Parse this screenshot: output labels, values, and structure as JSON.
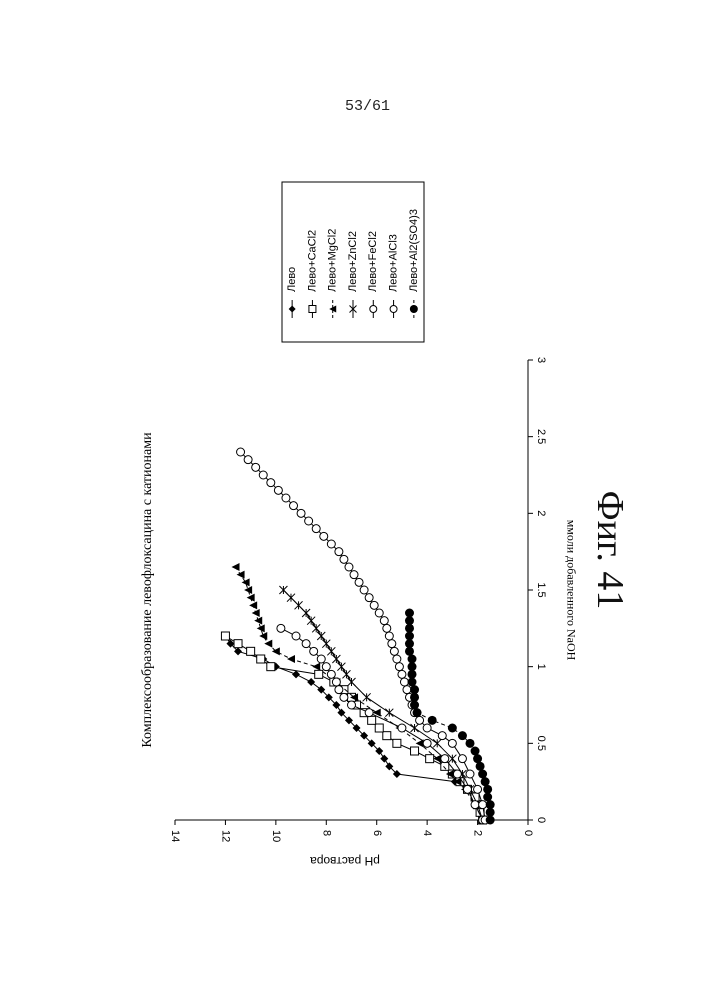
{
  "page": {
    "number": "53/61",
    "figure_label": "Фиг. 41"
  },
  "chart_data": {
    "type": "scatter",
    "title": "Комплексообразование левофлоксацина с катионами",
    "xlabel": "ммоли добавленного NaOH",
    "ylabel": "pH раствора",
    "xlim": [
      0,
      3
    ],
    "ylim": [
      0,
      14
    ],
    "xticks": [
      "0",
      "0.5",
      "1",
      "1.5",
      "2",
      "2.5",
      "3"
    ],
    "yticks": [
      "0",
      "2",
      "4",
      "6",
      "8",
      "10",
      "12",
      "14"
    ],
    "legend_position": "right",
    "series": [
      {
        "name": "Лево",
        "marker": "diamond",
        "dash": "solid",
        "x": [
          0,
          0.05,
          0.1,
          0.15,
          0.2,
          0.25,
          0.3,
          0.35,
          0.4,
          0.45,
          0.5,
          0.55,
          0.6,
          0.65,
          0.7,
          0.75,
          0.8,
          0.85,
          0.9,
          0.95,
          1.0,
          1.05,
          1.1,
          1.15,
          1.2
        ],
        "y": [
          1.8,
          1.9,
          2.0,
          2.1,
          2.4,
          2.9,
          5.2,
          5.5,
          5.7,
          5.9,
          6.2,
          6.5,
          6.8,
          7.1,
          7.4,
          7.6,
          7.9,
          8.2,
          8.6,
          9.2,
          10.0,
          10.5,
          11.5,
          11.8,
          12.0
        ]
      },
      {
        "name": "Лево+CaCl2",
        "marker": "square",
        "dash": "solid",
        "x": [
          0,
          0.05,
          0.1,
          0.15,
          0.2,
          0.25,
          0.3,
          0.35,
          0.4,
          0.45,
          0.5,
          0.55,
          0.6,
          0.65,
          0.7,
          0.75,
          0.8,
          0.85,
          0.9,
          0.95,
          1.0,
          1.05,
          1.1,
          1.15,
          1.2
        ],
        "y": [
          1.8,
          1.9,
          2.0,
          2.1,
          2.4,
          2.7,
          3.0,
          3.3,
          3.9,
          4.5,
          5.2,
          5.6,
          5.9,
          6.2,
          6.5,
          6.8,
          7.0,
          7.3,
          7.7,
          8.3,
          10.2,
          10.6,
          11.0,
          11.5,
          12.0
        ]
      },
      {
        "name": "Лево+MgCl2",
        "marker": "triangle",
        "dash": "dashed",
        "x": [
          0,
          0.1,
          0.2,
          0.25,
          0.3,
          0.4,
          0.5,
          0.6,
          0.7,
          0.8,
          0.9,
          1.0,
          1.05,
          1.1,
          1.15,
          1.2,
          1.25,
          1.3,
          1.35,
          1.4,
          1.45,
          1.5,
          1.55,
          1.6,
          1.65
        ],
        "y": [
          1.8,
          2.1,
          2.5,
          2.8,
          3.1,
          3.6,
          4.3,
          5.1,
          6.0,
          6.9,
          7.6,
          8.4,
          9.4,
          10.0,
          10.3,
          10.5,
          10.6,
          10.7,
          10.8,
          10.9,
          11.0,
          11.1,
          11.2,
          11.4,
          11.6
        ]
      },
      {
        "name": "Лево+ZnCl2",
        "marker": "asterisk",
        "dash": "solid",
        "x": [
          0,
          0.1,
          0.2,
          0.3,
          0.4,
          0.5,
          0.6,
          0.7,
          0.8,
          0.9,
          0.95,
          1.0,
          1.05,
          1.1,
          1.15,
          1.2,
          1.25,
          1.3,
          1.35,
          1.4,
          1.45,
          1.5
        ],
        "y": [
          1.8,
          2.0,
          2.3,
          2.6,
          3.0,
          3.6,
          4.5,
          5.5,
          6.4,
          7.0,
          7.2,
          7.4,
          7.6,
          7.8,
          8.0,
          8.2,
          8.4,
          8.6,
          8.8,
          9.1,
          9.4,
          9.7
        ]
      },
      {
        "name": "Лево+FeCl2",
        "marker": "circle-open",
        "dash": "solid",
        "x": [
          0,
          0.1,
          0.2,
          0.3,
          0.4,
          0.5,
          0.6,
          0.7,
          0.75,
          0.8,
          0.85,
          0.9,
          0.95,
          1.0,
          1.05,
          1.1,
          1.15,
          1.2,
          1.25
        ],
        "y": [
          1.8,
          2.1,
          2.4,
          2.8,
          3.3,
          4.0,
          5.0,
          6.3,
          7.0,
          7.3,
          7.5,
          7.6,
          7.8,
          8.0,
          8.2,
          8.5,
          8.8,
          9.2,
          9.8
        ]
      },
      {
        "name": "Лево+AlCl3",
        "marker": "circle-open",
        "dash": "solid",
        "x": [
          0,
          0.1,
          0.2,
          0.3,
          0.4,
          0.5,
          0.55,
          0.6,
          0.65,
          0.7,
          0.75,
          0.8,
          0.85,
          0.9,
          0.95,
          1.0,
          1.05,
          1.1,
          1.15,
          1.2,
          1.25,
          1.3,
          1.35,
          1.4,
          1.45,
          1.5,
          1.55,
          1.6,
          1.65,
          1.7,
          1.75,
          1.8,
          1.85,
          1.9,
          1.95,
          2.0,
          2.05,
          2.1,
          2.15,
          2.2,
          2.25,
          2.3,
          2.35,
          2.4
        ],
        "y": [
          1.7,
          1.8,
          2.0,
          2.3,
          2.6,
          3.0,
          3.4,
          4.0,
          4.3,
          4.5,
          4.6,
          4.7,
          4.8,
          4.9,
          5.0,
          5.1,
          5.2,
          5.3,
          5.4,
          5.5,
          5.6,
          5.7,
          5.9,
          6.1,
          6.3,
          6.5,
          6.7,
          6.9,
          7.1,
          7.3,
          7.5,
          7.8,
          8.1,
          8.4,
          8.7,
          9.0,
          9.3,
          9.6,
          9.9,
          10.2,
          10.5,
          10.8,
          11.1,
          11.4
        ]
      },
      {
        "name": "Лево+Al2(SO4)3",
        "marker": "circle-filled",
        "dash": "dashed",
        "x": [
          0,
          0.05,
          0.1,
          0.15,
          0.2,
          0.25,
          0.3,
          0.35,
          0.4,
          0.45,
          0.5,
          0.55,
          0.6,
          0.65,
          0.7,
          0.75,
          0.8,
          0.85,
          0.9,
          0.95,
          1.0,
          1.05,
          1.1,
          1.15,
          1.2,
          1.25,
          1.3,
          1.35
        ],
        "y": [
          1.5,
          1.5,
          1.5,
          1.6,
          1.6,
          1.7,
          1.8,
          1.9,
          2.0,
          2.1,
          2.3,
          2.6,
          3.0,
          3.8,
          4.4,
          4.5,
          4.5,
          4.5,
          4.6,
          4.6,
          4.6,
          4.6,
          4.7,
          4.7,
          4.7,
          4.7,
          4.7,
          4.7
        ]
      }
    ]
  }
}
